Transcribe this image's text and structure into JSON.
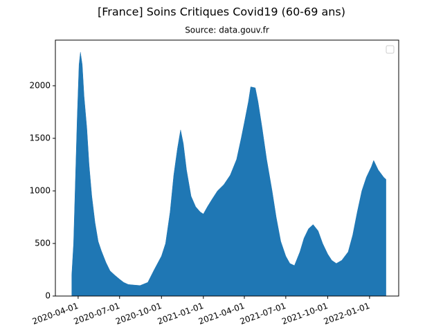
{
  "chart_data": {
    "type": "area",
    "title": "[France] Soins Critiques Covid19 (60-69 ans)",
    "subtitle": "Source: data.gouv.fr",
    "color": "#1f77b4",
    "x": [
      "2020-03-18",
      "2020-03-22",
      "2020-03-26",
      "2020-03-30",
      "2020-04-03",
      "2020-04-06",
      "2020-04-10",
      "2020-04-14",
      "2020-04-20",
      "2020-04-25",
      "2020-05-01",
      "2020-05-08",
      "2020-05-15",
      "2020-05-22",
      "2020-06-01",
      "2020-06-10",
      "2020-06-20",
      "2020-07-01",
      "2020-07-10",
      "2020-07-20",
      "2020-08-01",
      "2020-08-15",
      "2020-09-01",
      "2020-09-15",
      "2020-10-01",
      "2020-10-10",
      "2020-10-20",
      "2020-10-28",
      "2020-11-05",
      "2020-11-12",
      "2020-11-18",
      "2020-11-25",
      "2020-12-05",
      "2020-12-15",
      "2020-12-25",
      "2021-01-01",
      "2021-01-10",
      "2021-01-20",
      "2021-02-01",
      "2021-02-15",
      "2021-03-01",
      "2021-03-15",
      "2021-03-25",
      "2021-04-01",
      "2021-04-10",
      "2021-04-15",
      "2021-04-25",
      "2021-05-01",
      "2021-05-10",
      "2021-05-20",
      "2021-06-01",
      "2021-06-10",
      "2021-06-20",
      "2021-07-01",
      "2021-07-10",
      "2021-07-20",
      "2021-08-01",
      "2021-08-10",
      "2021-08-20",
      "2021-08-30",
      "2021-09-10",
      "2021-09-20",
      "2021-10-01",
      "2021-10-10",
      "2021-10-20",
      "2021-11-01",
      "2021-11-15",
      "2021-11-25",
      "2021-12-05",
      "2021-12-15",
      "2021-12-25",
      "2022-01-05",
      "2022-01-10",
      "2022-01-20",
      "2022-02-01",
      "2022-02-06"
    ],
    "values": [
      200,
      500,
      1100,
      1700,
      2200,
      2320,
      2200,
      1900,
      1600,
      1250,
      950,
      700,
      520,
      430,
      320,
      240,
      200,
      160,
      130,
      110,
      105,
      100,
      130,
      250,
      380,
      500,
      800,
      1150,
      1400,
      1580,
      1450,
      1200,
      950,
      850,
      800,
      780,
      850,
      920,
      1000,
      1060,
      1150,
      1300,
      1500,
      1650,
      1850,
      1990,
      1980,
      1850,
      1600,
      1300,
      1000,
      750,
      520,
      380,
      310,
      290,
      420,
      550,
      640,
      680,
      620,
      500,
      400,
      340,
      310,
      340,
      420,
      580,
      800,
      1000,
      1130,
      1230,
      1290,
      1200,
      1130,
      1110
    ],
    "xlim": [
      "2020-02-11",
      "2022-03-06"
    ],
    "xticks": [
      "2020-04-01",
      "2020-07-01",
      "2020-10-01",
      "2021-01-01",
      "2021-04-01",
      "2021-07-01",
      "2021-10-01",
      "2022-01-01"
    ],
    "ylim": [
      0,
      2434
    ],
    "yticks": [
      0,
      500,
      1000,
      1500,
      2000
    ]
  }
}
